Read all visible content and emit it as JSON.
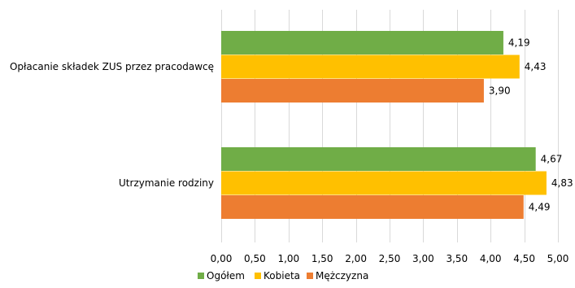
{
  "chart_data": {
    "type": "bar",
    "orientation": "horizontal",
    "categories": [
      "Opłacanie składek ZUS przez pracodawcę",
      "Utrzymanie rodziny"
    ],
    "series": [
      {
        "name": "Ogółem",
        "color": "#70AD47",
        "values": [
          4.19,
          4.67
        ],
        "labels": [
          "4,19",
          "4,67"
        ]
      },
      {
        "name": "Kobieta",
        "color": "#FFC000",
        "values": [
          4.43,
          4.83
        ],
        "labels": [
          "4,43",
          "4,83"
        ]
      },
      {
        "name": "Mężczyzna",
        "color": "#ED7D31",
        "values": [
          3.9,
          4.49
        ],
        "labels": [
          "3,90",
          "4,49"
        ]
      }
    ],
    "xlim": [
      0,
      5
    ],
    "xticks": [
      "0,00",
      "0,50",
      "1,00",
      "1,50",
      "2,00",
      "2,50",
      "3,00",
      "3,50",
      "4,00",
      "4,50",
      "5,00"
    ],
    "xtick_values": [
      0,
      0.5,
      1,
      1.5,
      2,
      2.5,
      3,
      3.5,
      4,
      4.5,
      5
    ],
    "grid": "vertical",
    "gridline_color": "#D9D9D9",
    "legend_position": "bottom",
    "data_labels": true
  }
}
